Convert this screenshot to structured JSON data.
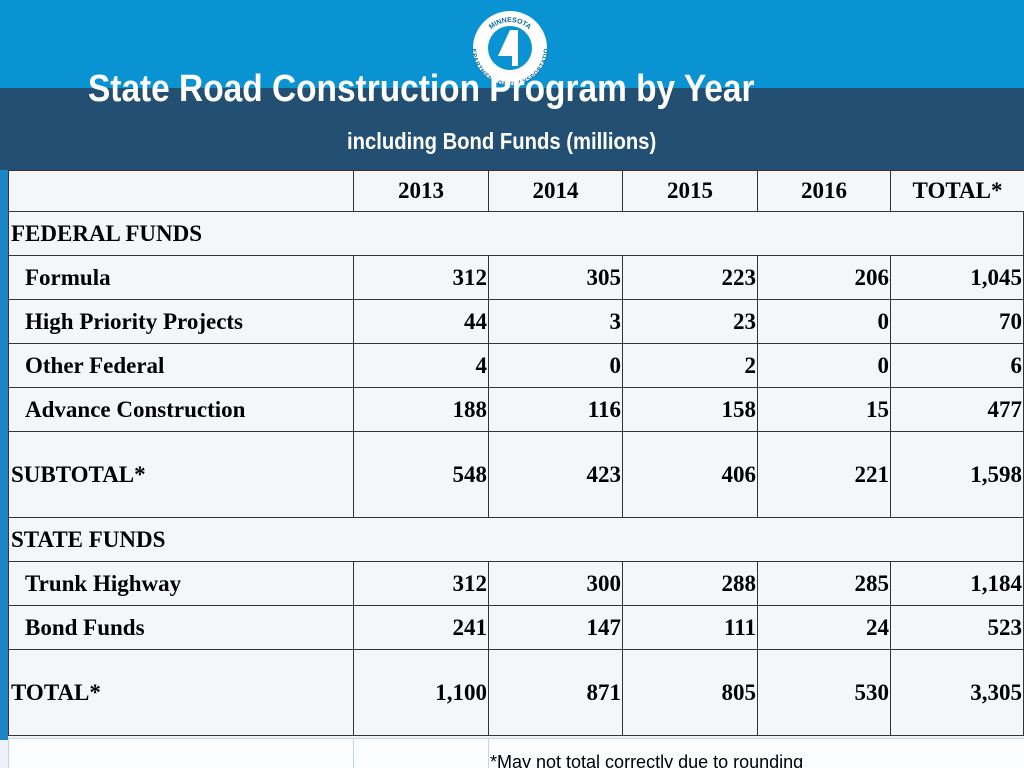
{
  "header": {
    "title": "State Road Construction Program by Year",
    "subtitle": "including Bond Funds (millions)"
  },
  "logo": {
    "top": "MINNESOTA",
    "bottom": "DEPARTMENT OF TRANSPORTATION"
  },
  "table": {
    "columns": [
      "2013",
      "2014",
      "2015",
      "2016",
      "TOTAL*"
    ],
    "sections": [
      {
        "title": "FEDERAL FUNDS",
        "rows": [
          {
            "label": "Formula",
            "values": [
              312,
              305,
              223,
              206,
              "1,045"
            ]
          },
          {
            "label": "High Priority Projects",
            "values": [
              44,
              3,
              23,
              0,
              70
            ]
          },
          {
            "label": "Other Federal",
            "values": [
              4,
              0,
              2,
              0,
              6
            ]
          },
          {
            "label": "Advance Construction",
            "values": [
              188,
              116,
              158,
              15,
              477
            ]
          }
        ],
        "total": {
          "label": "SUBTOTAL*",
          "values": [
            548,
            423,
            406,
            221,
            "1,598"
          ]
        }
      },
      {
        "title": "STATE FUNDS",
        "rows": [
          {
            "label": "Trunk Highway",
            "values": [
              312,
              300,
              288,
              285,
              "1,184"
            ]
          },
          {
            "label": "Bond Funds",
            "values": [
              241,
              147,
              111,
              24,
              523
            ]
          }
        ],
        "total": {
          "label": "TOTAL*",
          "values": [
            "1,100",
            871,
            805,
            530,
            "3,305"
          ]
        }
      }
    ],
    "footnote": "*May not total correctly due to rounding"
  }
}
